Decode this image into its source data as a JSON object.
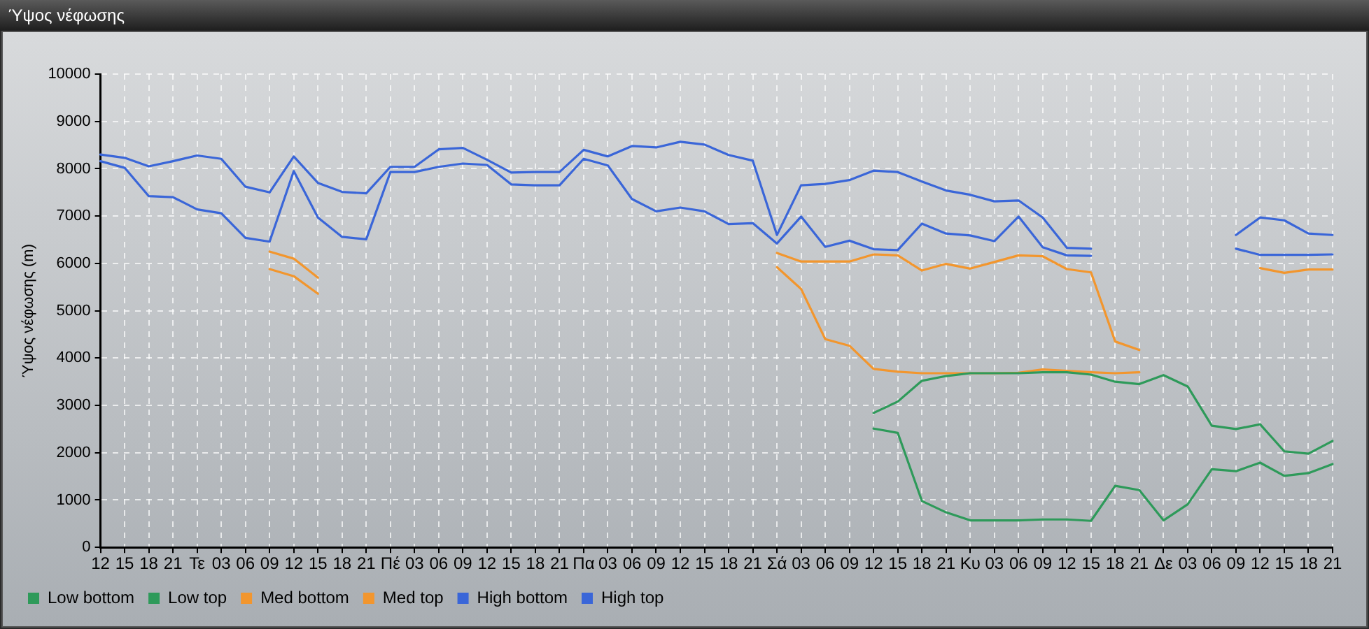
{
  "chart_data": {
    "type": "line",
    "title": "Ύψος νέφωσης",
    "ylabel": "Ύψος νέφωσης (m)",
    "categories": [
      "12",
      "15",
      "18",
      "21",
      "Τε",
      "03",
      "06",
      "09",
      "12",
      "15",
      "18",
      "21",
      "Πέ",
      "03",
      "06",
      "09",
      "12",
      "15",
      "18",
      "21",
      "Πα",
      "03",
      "06",
      "09",
      "12",
      "15",
      "18",
      "21",
      "Σά",
      "03",
      "06",
      "09",
      "12",
      "15",
      "18",
      "21",
      "Κυ",
      "03",
      "06",
      "09",
      "12",
      "15",
      "18",
      "21",
      "Δε",
      "03",
      "06",
      "09",
      "12",
      "15",
      "18",
      "21"
    ],
    "ylim": [
      0,
      10000
    ],
    "yticks": [
      0,
      1000,
      2000,
      3000,
      4000,
      5000,
      6000,
      7000,
      8000,
      9000,
      10000
    ],
    "grid": true,
    "legend": "bottom left",
    "marker": "none",
    "line_style": "solid",
    "series": [
      {
        "name": "Low bottom",
        "color": "#2e9a5a",
        "values": [
          null,
          null,
          null,
          null,
          null,
          null,
          null,
          null,
          null,
          null,
          null,
          null,
          null,
          null,
          null,
          null,
          null,
          null,
          null,
          null,
          null,
          null,
          null,
          null,
          null,
          null,
          null,
          null,
          null,
          null,
          null,
          null,
          2510,
          2420,
          980,
          740,
          570,
          570,
          570,
          590,
          590,
          560,
          1300,
          1210,
          570,
          910,
          1650,
          1610,
          1790,
          1510,
          1570,
          1760
        ]
      },
      {
        "name": "Low top",
        "color": "#2e9a5a",
        "values": [
          null,
          null,
          null,
          null,
          null,
          null,
          null,
          null,
          null,
          null,
          null,
          null,
          null,
          null,
          null,
          null,
          null,
          null,
          null,
          null,
          null,
          null,
          null,
          null,
          null,
          null,
          null,
          null,
          null,
          null,
          null,
          null,
          2840,
          3080,
          3520,
          3620,
          3680,
          3680,
          3680,
          3700,
          3700,
          3650,
          3500,
          3450,
          3640,
          3400,
          2570,
          2500,
          2600,
          2030,
          1980,
          2250
        ]
      },
      {
        "name": "Med bottom",
        "color": "#f2962e",
        "values": [
          null,
          null,
          null,
          null,
          null,
          null,
          null,
          5880,
          5730,
          5360,
          null,
          null,
          null,
          null,
          null,
          null,
          null,
          null,
          null,
          null,
          null,
          null,
          null,
          null,
          null,
          null,
          null,
          null,
          5920,
          5460,
          4400,
          4260,
          3770,
          3710,
          3680,
          3680,
          3680,
          3680,
          3690,
          3760,
          3730,
          3700,
          3680,
          3700,
          null,
          null,
          null,
          null,
          null,
          null,
          null,
          null
        ]
      },
      {
        "name": "Med top",
        "color": "#f2962e",
        "values": [
          null,
          null,
          null,
          null,
          null,
          null,
          null,
          6250,
          6100,
          5700,
          null,
          null,
          null,
          null,
          null,
          null,
          null,
          null,
          null,
          null,
          null,
          null,
          null,
          null,
          null,
          null,
          null,
          null,
          6220,
          6040,
          6040,
          6040,
          6190,
          6170,
          5850,
          5990,
          5890,
          6030,
          6170,
          6150,
          5880,
          5810,
          4350,
          4170,
          null,
          null,
          null,
          null,
          5900,
          5800,
          5870,
          5870
        ]
      },
      {
        "name": "High bottom",
        "color": "#3a66d8",
        "values": [
          8160,
          8020,
          7420,
          7400,
          7140,
          7060,
          6540,
          6460,
          7950,
          6970,
          6560,
          6510,
          7930,
          7930,
          8040,
          8110,
          8080,
          7670,
          7650,
          7650,
          8210,
          8070,
          7360,
          7100,
          7180,
          7100,
          6830,
          6850,
          6420,
          6990,
          6350,
          6480,
          6300,
          6280,
          6840,
          6630,
          6590,
          6470,
          6990,
          6340,
          6170,
          6160,
          null,
          null,
          null,
          null,
          null,
          6310,
          6180,
          6180,
          6180,
          6190
        ]
      },
      {
        "name": "High top",
        "color": "#3a66d8",
        "values": [
          8300,
          8230,
          8050,
          8160,
          8280,
          8210,
          7620,
          7500,
          8260,
          7700,
          7510,
          7480,
          8040,
          8040,
          8410,
          8440,
          8190,
          7920,
          7930,
          7930,
          8400,
          8260,
          8480,
          8450,
          8570,
          8510,
          8290,
          8170,
          6600,
          7650,
          7680,
          7760,
          7960,
          7930,
          7730,
          7540,
          7450,
          7310,
          7330,
          6970,
          6330,
          6310,
          null,
          null,
          null,
          null,
          null,
          6600,
          6970,
          6910,
          6630,
          6600
        ]
      }
    ]
  }
}
